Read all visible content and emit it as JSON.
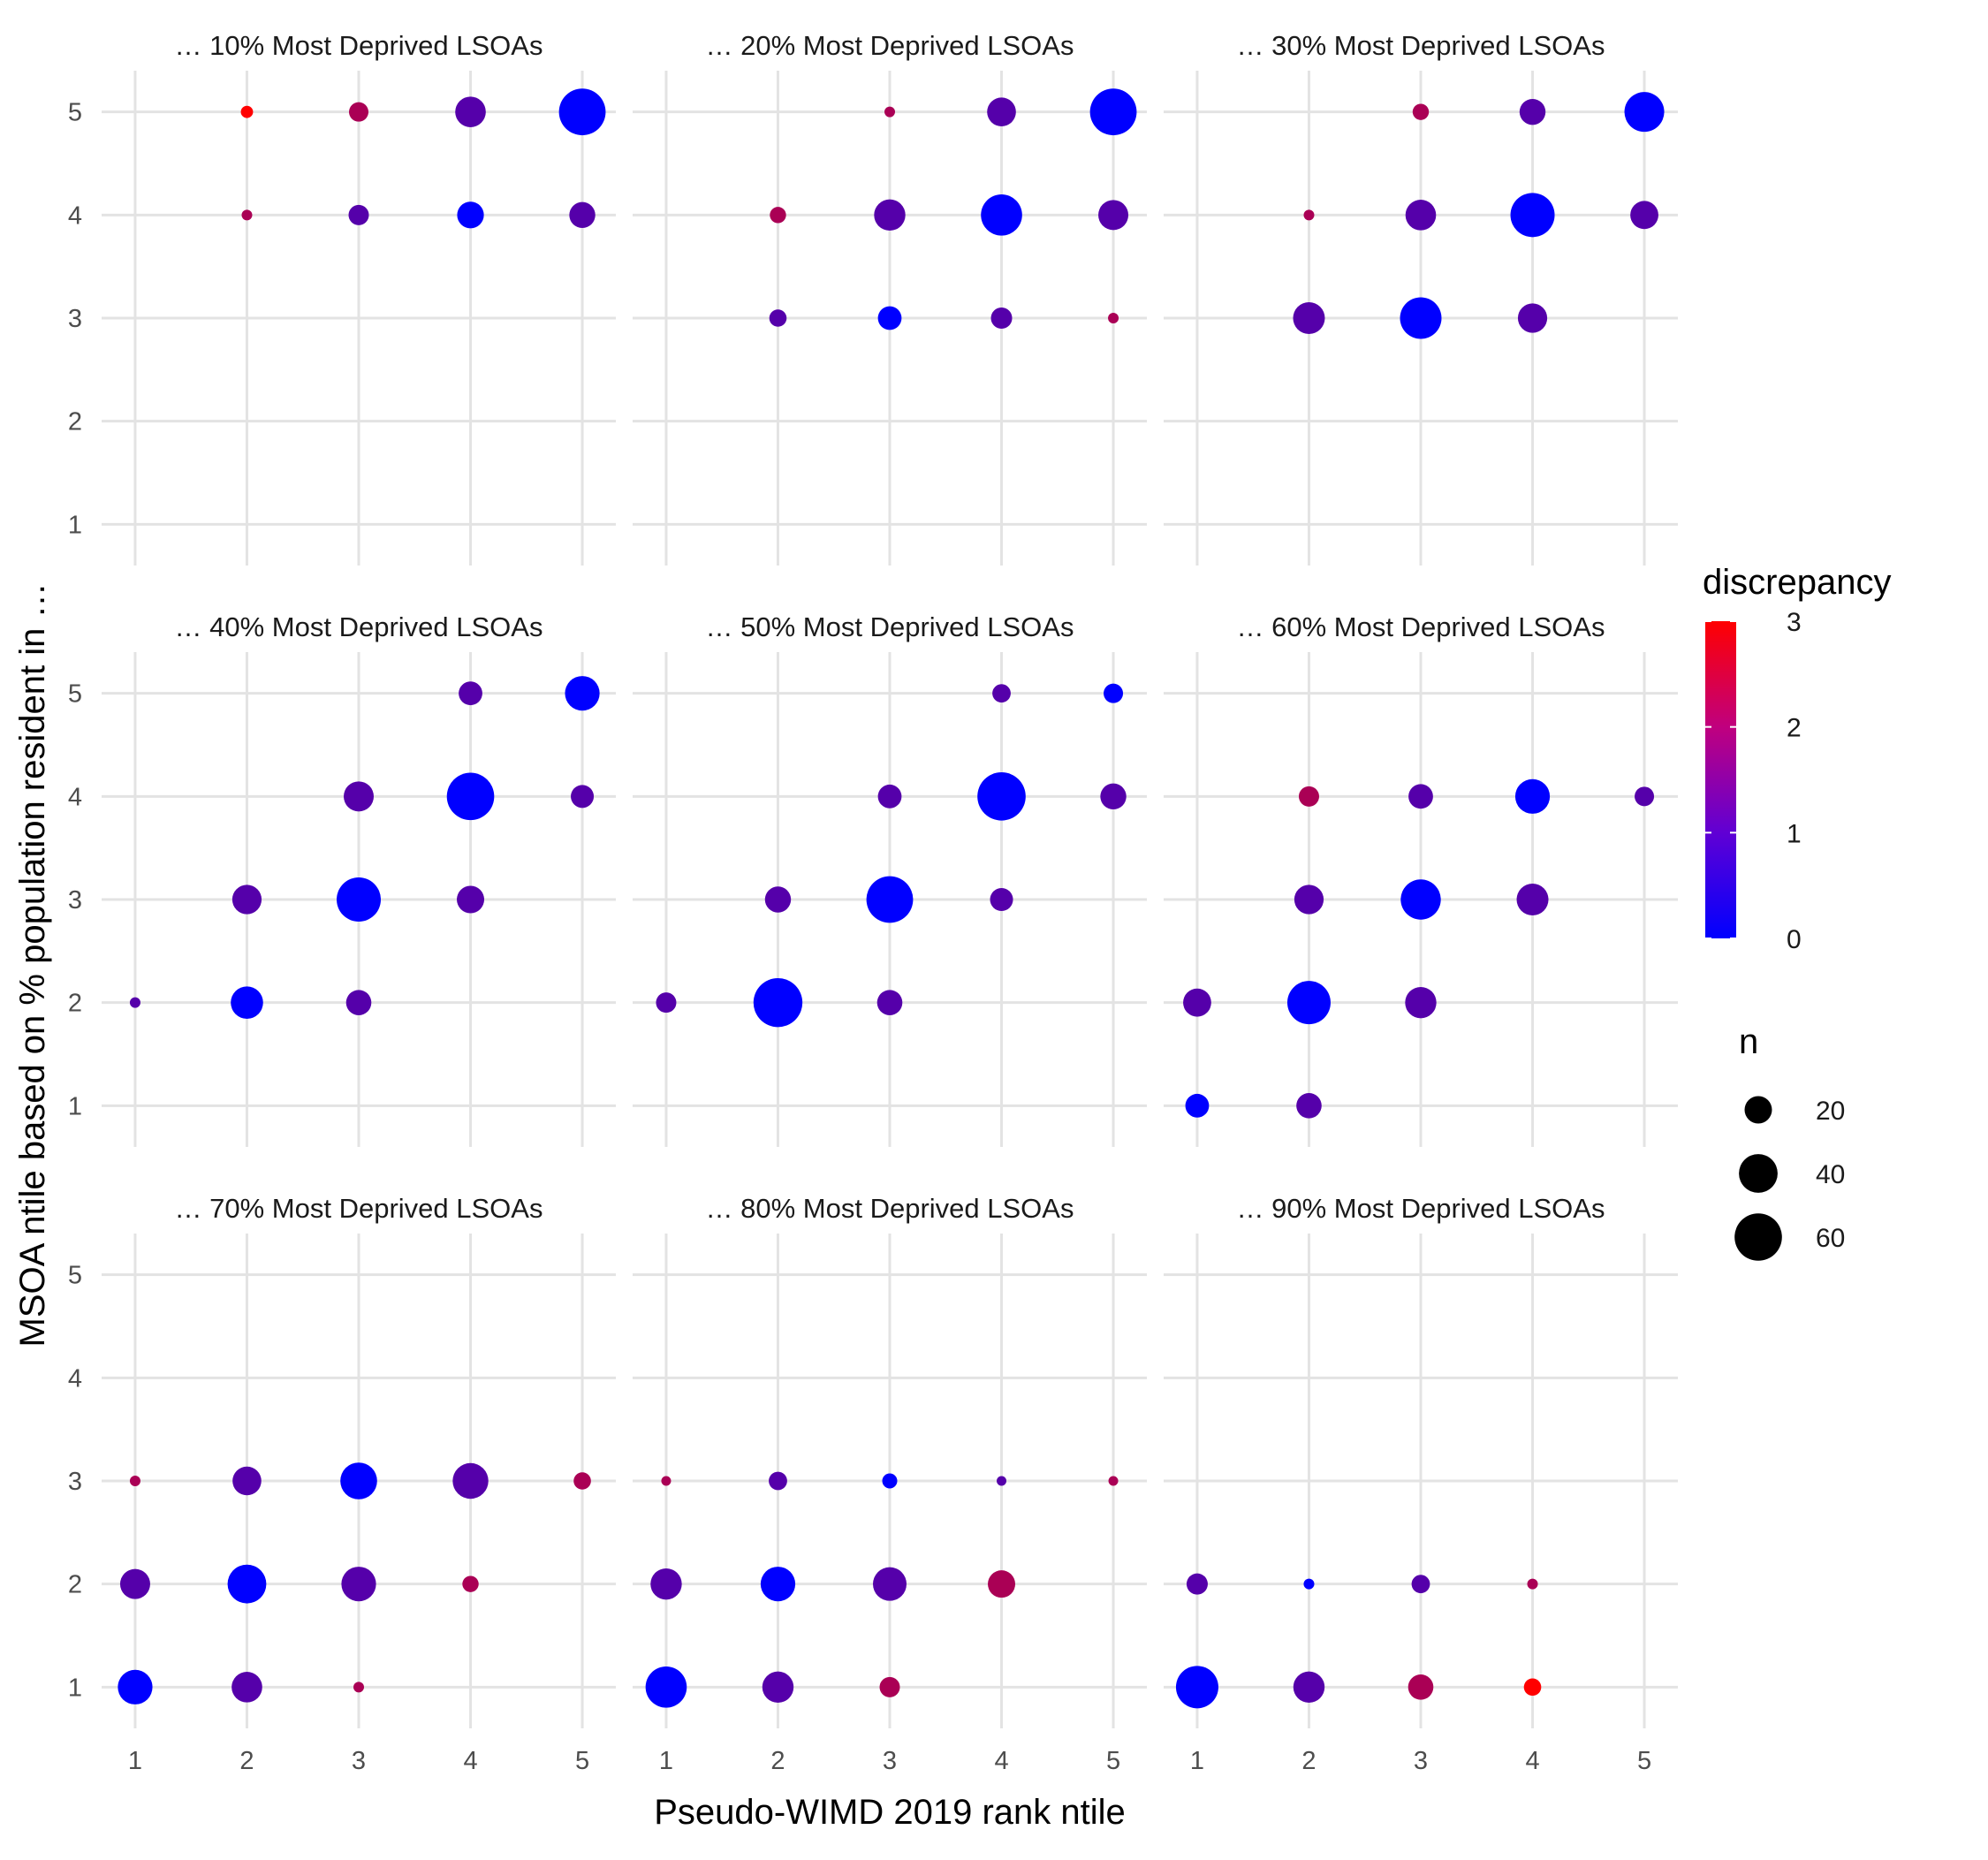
{
  "chart_data": {
    "type": "scatter",
    "subtype": "faceted bubble",
    "xlabel": "Pseudo-WIMD 2019 rank ntile",
    "ylabel": "MSOA ntile based on % population resident in …",
    "x_ticks": [
      "1",
      "2",
      "3",
      "4",
      "5"
    ],
    "y_ticks": [
      "1",
      "2",
      "3",
      "4",
      "5"
    ],
    "xlim": [
      0.7,
      5.3
    ],
    "ylim": [
      0.6,
      5.4
    ],
    "grid": true,
    "color_scale": {
      "low": "#0000ff",
      "high": "#ff0000",
      "limits": [
        0,
        3
      ],
      "breaks": [
        "0",
        "1",
        "2",
        "3"
      ]
    },
    "legend": {
      "color_title": "discrepancy",
      "size_title": "n",
      "size_breaks": [
        20,
        40,
        60
      ],
      "size_break_labels": [
        "20",
        "40",
        "60"
      ],
      "size_range_n": [
        0,
        70
      ],
      "placement": "right"
    },
    "facets": [
      {
        "title": "… 10% Most Deprived LSOAs",
        "points": [
          {
            "x": 2,
            "y": 5,
            "n": 4
          },
          {
            "x": 3,
            "y": 5,
            "n": 10
          },
          {
            "x": 4,
            "y": 5,
            "n": 25
          },
          {
            "x": 5,
            "y": 5,
            "n": 58
          },
          {
            "x": 2,
            "y": 4,
            "n": 3
          },
          {
            "x": 3,
            "y": 4,
            "n": 11
          },
          {
            "x": 4,
            "y": 4,
            "n": 19
          },
          {
            "x": 5,
            "y": 4,
            "n": 18
          }
        ]
      },
      {
        "title": "… 20% Most Deprived LSOAs",
        "points": [
          {
            "x": 3,
            "y": 5,
            "n": 3
          },
          {
            "x": 4,
            "y": 5,
            "n": 22
          },
          {
            "x": 5,
            "y": 5,
            "n": 58
          },
          {
            "x": 2,
            "y": 4,
            "n": 7
          },
          {
            "x": 3,
            "y": 4,
            "n": 26
          },
          {
            "x": 4,
            "y": 4,
            "n": 45
          },
          {
            "x": 5,
            "y": 4,
            "n": 24
          },
          {
            "x": 2,
            "y": 3,
            "n": 8
          },
          {
            "x": 3,
            "y": 3,
            "n": 15
          },
          {
            "x": 4,
            "y": 3,
            "n": 12
          },
          {
            "x": 5,
            "y": 3,
            "n": 3
          }
        ]
      },
      {
        "title": "… 30% Most Deprived LSOAs",
        "points": [
          {
            "x": 3,
            "y": 5,
            "n": 7
          },
          {
            "x": 4,
            "y": 5,
            "n": 18
          },
          {
            "x": 5,
            "y": 5,
            "n": 42
          },
          {
            "x": 2,
            "y": 4,
            "n": 3
          },
          {
            "x": 3,
            "y": 4,
            "n": 25
          },
          {
            "x": 4,
            "y": 4,
            "n": 52
          },
          {
            "x": 5,
            "y": 4,
            "n": 21
          },
          {
            "x": 2,
            "y": 3,
            "n": 27
          },
          {
            "x": 3,
            "y": 3,
            "n": 46
          },
          {
            "x": 4,
            "y": 3,
            "n": 23
          }
        ]
      },
      {
        "title": "… 40% Most Deprived LSOAs",
        "points": [
          {
            "x": 4,
            "y": 5,
            "n": 15
          },
          {
            "x": 5,
            "y": 5,
            "n": 32
          },
          {
            "x": 3,
            "y": 4,
            "n": 24
          },
          {
            "x": 4,
            "y": 4,
            "n": 60
          },
          {
            "x": 5,
            "y": 4,
            "n": 14
          },
          {
            "x": 2,
            "y": 3,
            "n": 23
          },
          {
            "x": 3,
            "y": 3,
            "n": 52
          },
          {
            "x": 4,
            "y": 3,
            "n": 20
          },
          {
            "x": 1,
            "y": 2,
            "n": 3
          },
          {
            "x": 2,
            "y": 2,
            "n": 28
          },
          {
            "x": 3,
            "y": 2,
            "n": 17
          }
        ]
      },
      {
        "title": "… 50% Most Deprived LSOAs",
        "points": [
          {
            "x": 4,
            "y": 5,
            "n": 9
          },
          {
            "x": 5,
            "y": 5,
            "n": 10
          },
          {
            "x": 3,
            "y": 4,
            "n": 15
          },
          {
            "x": 4,
            "y": 4,
            "n": 62
          },
          {
            "x": 5,
            "y": 4,
            "n": 18
          },
          {
            "x": 2,
            "y": 3,
            "n": 18
          },
          {
            "x": 3,
            "y": 3,
            "n": 58
          },
          {
            "x": 4,
            "y": 3,
            "n": 14
          },
          {
            "x": 1,
            "y": 2,
            "n": 11
          },
          {
            "x": 2,
            "y": 2,
            "n": 64
          },
          {
            "x": 3,
            "y": 2,
            "n": 17
          }
        ]
      },
      {
        "title": "… 60% Most Deprived LSOAs",
        "points": [
          {
            "x": 2,
            "y": 4,
            "n": 11
          },
          {
            "x": 3,
            "y": 4,
            "n": 16
          },
          {
            "x": 4,
            "y": 4,
            "n": 32
          },
          {
            "x": 5,
            "y": 4,
            "n": 10
          },
          {
            "x": 2,
            "y": 3,
            "n": 23
          },
          {
            "x": 3,
            "y": 3,
            "n": 43
          },
          {
            "x": 4,
            "y": 3,
            "n": 27
          },
          {
            "x": 1,
            "y": 2,
            "n": 21
          },
          {
            "x": 2,
            "y": 2,
            "n": 50
          },
          {
            "x": 3,
            "y": 2,
            "n": 26
          },
          {
            "x": 1,
            "y": 1,
            "n": 15
          },
          {
            "x": 2,
            "y": 1,
            "n": 17
          }
        ]
      },
      {
        "title": "… 70% Most Deprived LSOAs",
        "points": [
          {
            "x": 1,
            "y": 3,
            "n": 3
          },
          {
            "x": 2,
            "y": 3,
            "n": 22
          },
          {
            "x": 3,
            "y": 3,
            "n": 36
          },
          {
            "x": 4,
            "y": 3,
            "n": 34
          },
          {
            "x": 5,
            "y": 3,
            "n": 8
          },
          {
            "x": 1,
            "y": 2,
            "n": 24
          },
          {
            "x": 2,
            "y": 2,
            "n": 40
          },
          {
            "x": 3,
            "y": 2,
            "n": 32
          },
          {
            "x": 4,
            "y": 2,
            "n": 7
          },
          {
            "x": 1,
            "y": 1,
            "n": 32
          },
          {
            "x": 2,
            "y": 1,
            "n": 25
          },
          {
            "x": 3,
            "y": 1,
            "n": 3
          }
        ]
      },
      {
        "title": "… 80% Most Deprived LSOAs",
        "points": [
          {
            "x": 1,
            "y": 3,
            "n": 2
          },
          {
            "x": 2,
            "y": 3,
            "n": 9
          },
          {
            "x": 3,
            "y": 3,
            "n": 6
          },
          {
            "x": 4,
            "y": 3,
            "n": 2
          },
          {
            "x": 5,
            "y": 3,
            "n": 2
          },
          {
            "x": 1,
            "y": 2,
            "n": 26
          },
          {
            "x": 2,
            "y": 2,
            "n": 32
          },
          {
            "x": 3,
            "y": 2,
            "n": 30
          },
          {
            "x": 4,
            "y": 2,
            "n": 20
          },
          {
            "x": 1,
            "y": 1,
            "n": 45
          },
          {
            "x": 2,
            "y": 1,
            "n": 26
          },
          {
            "x": 3,
            "y": 1,
            "n": 11
          }
        ]
      },
      {
        "title": "… 90% Most Deprived LSOAs",
        "points": [
          {
            "x": 1,
            "y": 2,
            "n": 12
          },
          {
            "x": 2,
            "y": 2,
            "n": 3
          },
          {
            "x": 3,
            "y": 2,
            "n": 9
          },
          {
            "x": 4,
            "y": 2,
            "n": 3
          },
          {
            "x": 1,
            "y": 1,
            "n": 48
          },
          {
            "x": 2,
            "y": 1,
            "n": 26
          },
          {
            "x": 3,
            "y": 1,
            "n": 17
          },
          {
            "x": 4,
            "y": 1,
            "n": 8
          }
        ]
      }
    ]
  }
}
